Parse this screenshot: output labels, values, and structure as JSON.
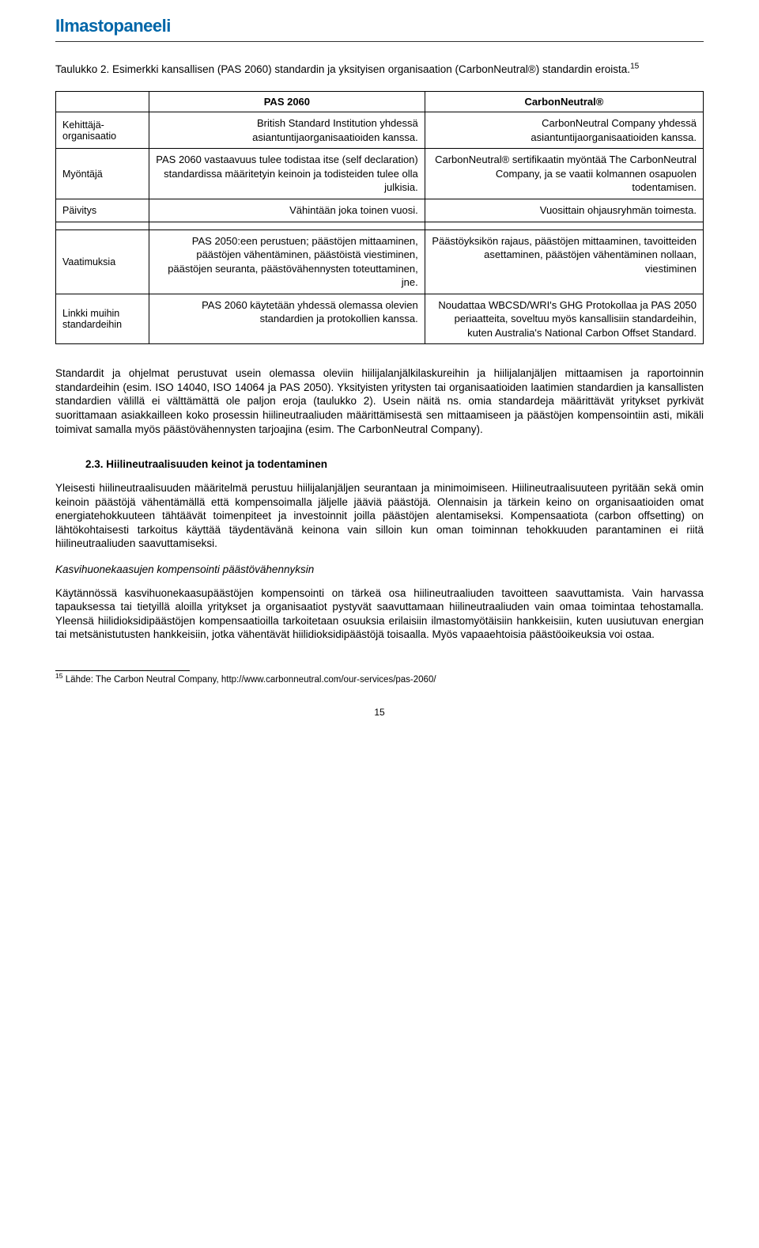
{
  "logo_text": "Ilmastopaneeli",
  "caption": "Taulukko 2. Esimerkki kansallisen (PAS 2060) standardin ja yksityisen organisaation (CarbonNeutral®) standardin eroista.",
  "caption_sup": "15",
  "table": {
    "headers": [
      "",
      "PAS 2060",
      "CarbonNeutral®"
    ],
    "col_widths": [
      "118px",
      "auto",
      "auto"
    ],
    "rows": [
      {
        "label": "Kehittäjä-organisaatio",
        "c1": "British Standard Institution yhdessä asiantuntijaorganisaatioiden kanssa.",
        "c2": "CarbonNeutral Company yhdessä asiantuntijaorganisaatioiden kanssa."
      },
      {
        "label": "Myöntäjä",
        "c1": "PAS 2060 vastaavuus tulee todistaa itse (self declaration) standardissa määritetyin keinoin ja todisteiden tulee olla julkisia.",
        "c2": "CarbonNeutral® sertifikaatin myöntää The CarbonNeutral Company, ja se vaatii kolmannen osapuolen todentamisen."
      },
      {
        "label": "Päivitys",
        "c1": "Vähintään joka toinen vuosi.",
        "c2": "Vuosittain ohjausryhmän toimesta."
      },
      {
        "spacer": true
      },
      {
        "label": "Vaatimuksia",
        "c1": "PAS 2050:een perustuen; päästöjen mittaaminen, päästöjen vähentäminen, päästöistä viestiminen, päästöjen seuranta, päästövähennysten toteuttaminen, jne.",
        "c2": "Päästöyksikön rajaus, päästöjen mittaaminen, tavoitteiden asettaminen, päästöjen vähentäminen nollaan, viestiminen"
      },
      {
        "label": "Linkki muihin standardeihin",
        "c1": "PAS 2060 käytetään yhdessä olemassa olevien standardien ja protokollien kanssa.",
        "c2": "Noudattaa WBCSD/WRI's GHG Protokollaa ja PAS 2050 periaatteita, soveltuu myös kansallisiin standardeihin, kuten Australia's National Carbon Offset Standard."
      }
    ]
  },
  "para_after_table": "Standardit ja ohjelmat perustuvat usein olemassa oleviin hiilijalanjälkilaskureihin ja hiilijalanjäljen mittaamisen ja raportoinnin standardeihin (esim. ISO 14040, ISO 14064 ja PAS 2050). Yksityisten yritysten tai organisaatioiden laatimien standardien ja kansallisten standardien välillä ei välttämättä ole paljon eroja (taulukko 2). Usein näitä ns. omia standardeja määrittävät yritykset pyrkivät suorittamaan asiakkailleen koko prosessin hiilineutraaliuden määrittämisestä sen mittaamiseen ja päästöjen kompensointiin asti, mikäli toimivat samalla myös päästövähennysten tarjoajina (esim. The CarbonNeutral Company).",
  "section_heading": "2.3. Hiilineutraalisuuden keinot ja todentaminen",
  "para_section_1": "Yleisesti hiilineutraalisuuden määritelmä perustuu hiilijalanjäljen seurantaan ja minimoimiseen. Hiilineutraalisuuteen pyritään sekä omin keinoin päästöjä vähentämällä että kompensoimalla jäljelle jääviä päästöjä. Olennaisin ja tärkein keino on organisaatioiden omat energiatehokkuuteen tähtäävät toimenpiteet ja investoinnit joilla päästöjen alentamiseksi. Kompensaatiota (carbon offsetting) on lähtökohtaisesti tarkoitus käyttää täydentävänä keinona vain silloin kun oman toiminnan tehokkuuden parantaminen ei riitä hiilineutraaliuden saavuttamiseksi.",
  "ital_subhead": "Kasvihuonekaasujen kompensointi päästövähennyksin",
  "para_section_2": "Käytännössä kasvihuonekaasupäästöjen kompensointi on tärkeä osa hiilineutraaliuden tavoitteen saavuttamista. Vain harvassa tapauksessa tai tietyillä aloilla yritykset ja organisaatiot pystyvät saavuttamaan hiilineutraaliuden vain omaa toimintaa tehostamalla. Yleensä hiilidioksidipäästöjen kompensaatioilla tarkoitetaan osuuksia erilaisiin ilmastomyötäisiin hankkeisiin, kuten uusiutuvan energian tai metsänistutusten hankkeisiin, jotka vähentävät hiilidioksidipäästöjä toisaalla. Myös vapaaehtoisia päästöoikeuksia voi ostaa.",
  "footnote_num": "15",
  "footnote_text": " Lähde: The Carbon Neutral Company, http://www.carbonneutral.com/our-services/pas-2060/",
  "page_number": "15",
  "colors": {
    "logo": "#0066a8",
    "text": "#000000",
    "border": "#000000",
    "hr": "#333333",
    "background": "#ffffff"
  },
  "fonts": {
    "body_family": "Arial, Helvetica, sans-serif",
    "body_size_pt": 10,
    "caption_size_pt": 10,
    "table_size_pt": 10,
    "footnote_size_pt": 9,
    "logo_size_pt": 17,
    "logo_weight": 700
  }
}
